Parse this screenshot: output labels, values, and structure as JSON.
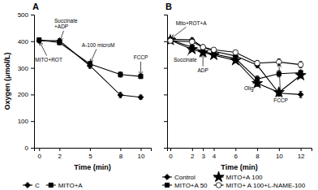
{
  "chart_data": [
    {
      "type": "line",
      "title": "A",
      "xlabel": "Time (min)",
      "ylabel": "Oxygen (μmol/L)",
      "x": [
        0,
        2,
        5,
        8,
        10
      ],
      "xlim": [
        -0.5,
        11
      ],
      "xticks": [
        0,
        2,
        5,
        8,
        10
      ],
      "ylim": [
        0,
        500
      ],
      "yticks": [
        0,
        100,
        200,
        300,
        400,
        500
      ],
      "grid": false,
      "legend": "bottom",
      "series": [
        {
          "name": "C",
          "color": "black",
          "marker": "diamond",
          "line_style": "solid",
          "values": [
            402,
            402,
            308,
            198,
            190
          ],
          "errors": [
            8,
            8,
            10,
            10,
            8
          ]
        },
        {
          "name": "MITO+A",
          "color": "black",
          "marker": "square",
          "line_style": "solid",
          "values": [
            405,
            395,
            315,
            275,
            268
          ],
          "errors": [
            8,
            8,
            10,
            10,
            8
          ]
        }
      ],
      "annotations": [
        {
          "text": "MITO+ROT",
          "xy": [
            0,
            402
          ],
          "xytext": [
            -0.4,
            330
          ]
        },
        {
          "text": "Succinate\n+ADP",
          "xy": [
            2,
            395
          ],
          "xytext": [
            1.5,
            465
          ]
        },
        {
          "text": "A-100 microM",
          "xy": [
            5,
            315
          ],
          "xytext": [
            4.2,
            385
          ]
        },
        {
          "text": "FCCP",
          "xy": [
            10,
            268
          ],
          "xytext": [
            9.3,
            338
          ]
        }
      ]
    },
    {
      "type": "line",
      "title": "B",
      "xlabel": "Time (min)",
      "x": [
        0,
        2,
        3,
        4,
        6,
        8,
        10,
        12
      ],
      "xlim": [
        -0.3,
        13
      ],
      "xticks": [
        0,
        2,
        3,
        4,
        6,
        8,
        10,
        12
      ],
      "ylim": [
        0,
        500
      ],
      "yticks": [
        0,
        100,
        200,
        300,
        400,
        500
      ],
      "tick_labels": "x",
      "grid": false,
      "legend": "bottom",
      "series": [
        {
          "name": "Control",
          "color": "black",
          "marker": "diamond",
          "line_style": "solid",
          "values": [
            408,
            405,
            378,
            362,
            345,
            310,
            205,
            200
          ],
          "errors": [
            8,
            8,
            8,
            8,
            8,
            10,
            12,
            12
          ]
        },
        {
          "name": "MITO+A 100",
          "color": "black",
          "marker": "star",
          "line_style": "solid",
          "values": [
            404,
            370,
            358,
            348,
            328,
            242,
            208,
            272
          ],
          "errors": [
            8,
            8,
            8,
            8,
            8,
            12,
            12,
            10
          ]
        },
        {
          "name": "MITO+A 50",
          "color": "black",
          "marker": "square",
          "line_style": "solid",
          "values": [
            405,
            378,
            362,
            352,
            335,
            258,
            278,
            282
          ],
          "errors": [
            8,
            8,
            8,
            8,
            8,
            12,
            12,
            10
          ]
        },
        {
          "name": "MITO+ A 100+L-NAME-100",
          "color": "black",
          "marker": "open-circle",
          "line_style": "solid",
          "values": [
            402,
            398,
            378,
            368,
            358,
            318,
            322,
            312
          ],
          "errors": [
            8,
            8,
            8,
            8,
            8,
            10,
            12,
            12
          ]
        }
      ],
      "annotations": [
        {
          "text": "Mito+ROT+A",
          "xy": [
            0,
            408
          ],
          "xytext": [
            0.5,
            468
          ]
        },
        {
          "text": "Succinate",
          "xy": [
            2,
            378
          ],
          "xytext": [
            0.3,
            330
          ]
        },
        {
          "text": "ADP",
          "xy": [
            3,
            358
          ],
          "xytext": [
            2.5,
            290
          ]
        },
        {
          "text": "Olig",
          "xy": [
            8,
            258
          ],
          "xytext": [
            6.8,
            222
          ]
        },
        {
          "text": "FCCP",
          "xy": [
            10,
            322
          ],
          "xytext": [
            9.5,
            178
          ]
        }
      ]
    }
  ]
}
